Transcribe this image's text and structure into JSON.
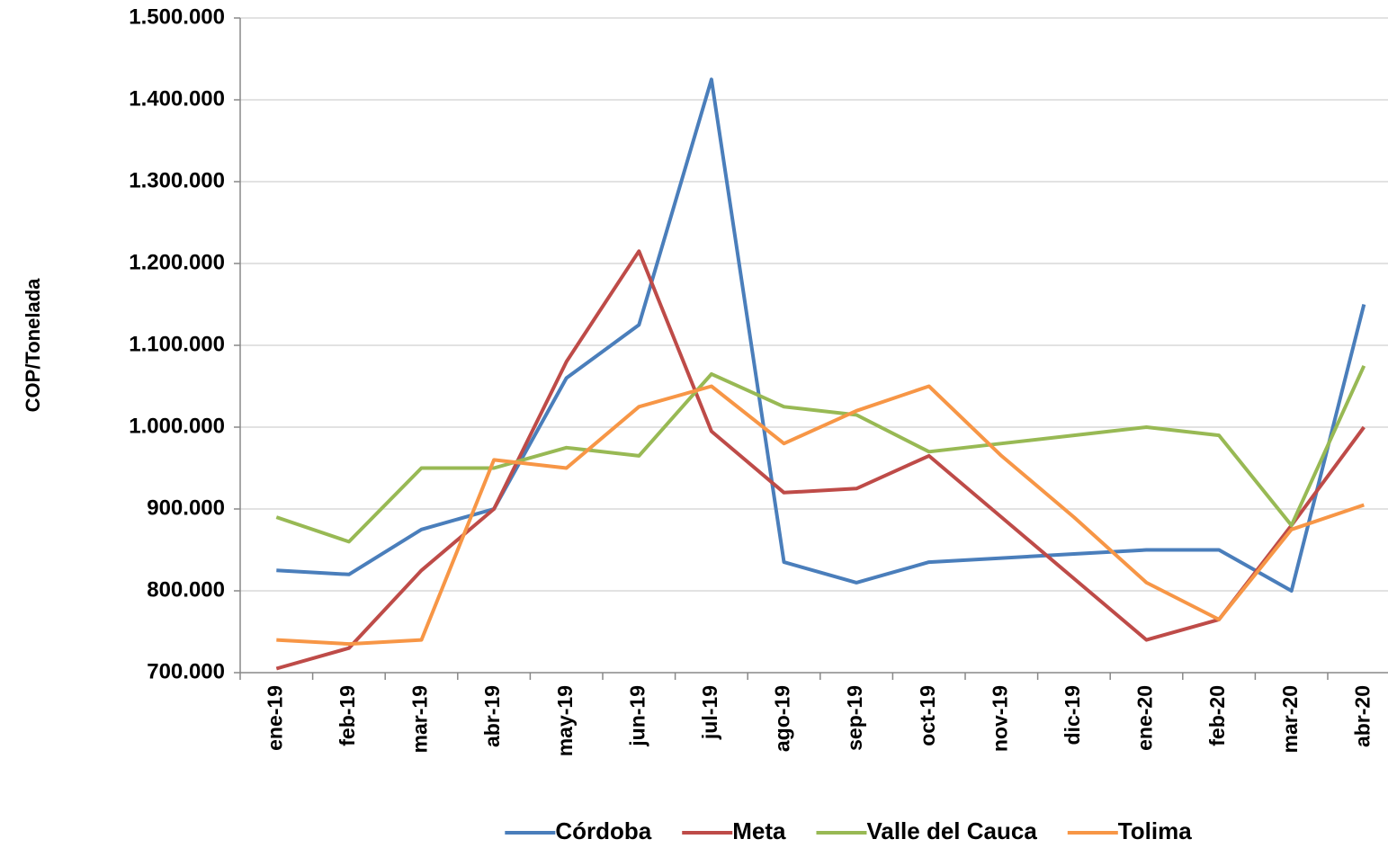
{
  "chart_data": {
    "type": "line",
    "y_label": "COP/Tonelada",
    "categories": [
      "ene-19",
      "feb-19",
      "mar-19",
      "abr-19",
      "may-19",
      "jun-19",
      "jul-19",
      "ago-19",
      "sep-19",
      "oct-19",
      "nov-19",
      "dic-19",
      "ene-20",
      "feb-20",
      "mar-20",
      "abr-20"
    ],
    "series": [
      {
        "name": "Córdoba",
        "color": "#4a7ebb",
        "values": [
          825000,
          820000,
          875000,
          900000,
          1060000,
          1125000,
          1425000,
          835000,
          810000,
          835000,
          840000,
          845000,
          850000,
          850000,
          800000,
          1150000
        ]
      },
      {
        "name": "Meta",
        "color": "#be4b48",
        "values": [
          705000,
          730000,
          825000,
          900000,
          1080000,
          1215000,
          995000,
          920000,
          925000,
          965000,
          890000,
          815000,
          740000,
          765000,
          880000,
          1000000
        ]
      },
      {
        "name": "Valle del Cauca",
        "color": "#98b954",
        "values": [
          890000,
          860000,
          950000,
          950000,
          975000,
          965000,
          1065000,
          1025000,
          1015000,
          970000,
          980000,
          990000,
          1000000,
          990000,
          880000,
          1075000
        ]
      },
      {
        "name": "Tolima",
        "color": "#f79646",
        "values": [
          740000,
          735000,
          740000,
          960000,
          950000,
          1025000,
          1050000,
          980000,
          1020000,
          1050000,
          965000,
          890000,
          810000,
          765000,
          875000,
          905000
        ]
      }
    ],
    "ylim": [
      700000,
      1500000
    ],
    "yticks": [
      {
        "value": 700000,
        "label": "700.000"
      },
      {
        "value": 800000,
        "label": "800.000"
      },
      {
        "value": 900000,
        "label": "900.000"
      },
      {
        "value": 1000000,
        "label": "1.000.000"
      },
      {
        "value": 1100000,
        "label": "1.100.000"
      },
      {
        "value": 1200000,
        "label": "1.200.000"
      },
      {
        "value": 1300000,
        "label": "1.300.000"
      },
      {
        "value": 1400000,
        "label": "1.400.000"
      },
      {
        "value": 1500000,
        "label": "1.500.000"
      }
    ],
    "grid": true,
    "legend": "bottom"
  }
}
